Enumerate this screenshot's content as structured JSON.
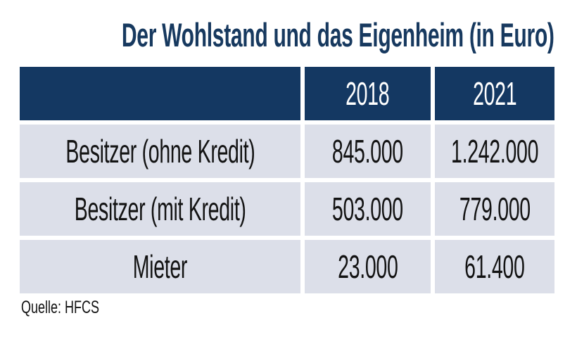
{
  "title": "Der Wohlstand und das Eigenheim (in Euro)",
  "source_label": "Quelle: HFCS",
  "colors": {
    "title_text": "#17395f",
    "header_bg": "#143862",
    "header_text": "#ffffff",
    "row_bg": "#dcdfe9",
    "cell_text": "#131313"
  },
  "chart_data": {
    "type": "table",
    "title": "Der Wohlstand und das Eigenheim (in Euro)",
    "unit": "Euro",
    "columns": [
      "",
      "2018",
      "2021"
    ],
    "rows": [
      {
        "label": "Besitzer (ohne Kredit)",
        "values": [
          "845.000",
          "1.242.000"
        ],
        "values_numeric": [
          845000,
          1242000
        ]
      },
      {
        "label": "Besitzer (mit Kredit)",
        "values": [
          "503.000",
          "779.000"
        ],
        "values_numeric": [
          503000,
          779000
        ]
      },
      {
        "label": "Mieter",
        "values": [
          "23.000",
          "61.400"
        ],
        "values_numeric": [
          23000,
          61400
        ]
      }
    ],
    "source": "Quelle: HFCS"
  }
}
